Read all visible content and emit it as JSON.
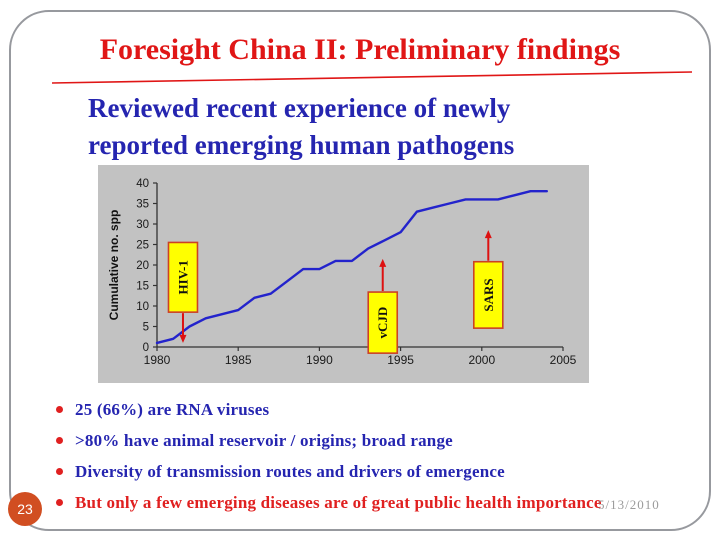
{
  "title": "Foresight China II: Preliminary findings",
  "subtitle_lines": [
    "Reviewed recent experience of newly",
    "reported emerging human pathogens"
  ],
  "colors": {
    "title_red": "#e01616",
    "body_blue": "#2525b0",
    "accent_red": "#e02020",
    "chart_line": "#2323cc",
    "chart_bg": "#c2c2c2",
    "annotation_fill": "#ffff00",
    "annotation_border": "#cc4125",
    "arrow_red": "#dd1111",
    "page_badge": "#d14e21",
    "date_gray": "#8a8a8a"
  },
  "chart_data": {
    "type": "line",
    "title": "",
    "xlabel": "",
    "ylabel": "Cumulative no. spp",
    "xlim": [
      1980,
      2005
    ],
    "ylim": [
      0,
      40
    ],
    "x_ticks": [
      1980,
      1985,
      1990,
      1995,
      2000,
      2005
    ],
    "y_tick_step": 5,
    "grid": false,
    "legend": false,
    "x": [
      1980,
      1981,
      1982,
      1983,
      1984,
      1985,
      1986,
      1987,
      1988,
      1989,
      1990,
      1991,
      1992,
      1993,
      1994,
      1995,
      1996,
      1997,
      1998,
      1999,
      2000,
      2001,
      2002,
      2003,
      2004
    ],
    "values": [
      1,
      2,
      5,
      7,
      8,
      9,
      12,
      13,
      16,
      19,
      19,
      21,
      21,
      24,
      26,
      28,
      33,
      34,
      35,
      36,
      36,
      36,
      37,
      38,
      38
    ],
    "annotations": [
      {
        "label": "HIV-1",
        "year": 1981.6,
        "box_top_value": 25.5,
        "box_bottom_value": 8.5,
        "arrow_tip_value": 1.0,
        "arrow_dir": "down"
      },
      {
        "label": "vCJD",
        "year": 1993.9,
        "box_top_value": 13.4,
        "box_bottom_value": -1.5,
        "arrow_tip_value": 21.5,
        "arrow_dir": "up"
      },
      {
        "label": "SARS",
        "year": 2000.4,
        "box_top_value": 20.8,
        "box_bottom_value": 4.6,
        "arrow_tip_value": 28.5,
        "arrow_dir": "up"
      }
    ]
  },
  "bullets": [
    {
      "text": "25 (66%) are RNA viruses",
      "emphasis": false
    },
    {
      "text": ">80% have animal reservoir / origins; broad range",
      "emphasis": false
    },
    {
      "text": "Diversity of transmission routes and drivers of emergence",
      "emphasis": false
    },
    {
      "text": "But only a few emerging diseases are of great public health importance",
      "emphasis": true
    }
  ],
  "footer": {
    "page_number": "23",
    "date": "5/13/2010"
  }
}
